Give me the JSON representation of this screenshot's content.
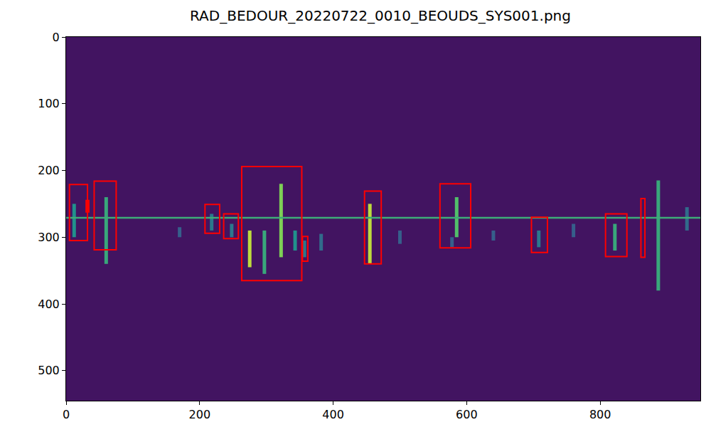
{
  "chart_data": {
    "type": "spectrogram",
    "title": "RAD_BEDOUR_20220722_0010_BEOUDS_SYS001.png",
    "xlim": [
      0,
      950
    ],
    "ylim": [
      545,
      0
    ],
    "xticks": [
      0,
      200,
      400,
      600,
      800
    ],
    "yticks": [
      0,
      100,
      200,
      300,
      400,
      500
    ],
    "zlim": [
      0,
      1
    ],
    "grid": false,
    "carrier": {
      "y": 271,
      "x": [
        0,
        950
      ],
      "value": 0.62
    },
    "signals": {
      "x": [
        12,
        60,
        170,
        218,
        248,
        275,
        297,
        322,
        343,
        357,
        382,
        455,
        500,
        578,
        585,
        640,
        708,
        760,
        822,
        887,
        930
      ],
      "y0": [
        250,
        240,
        285,
        265,
        280,
        290,
        290,
        220,
        290,
        305,
        295,
        250,
        290,
        300,
        240,
        290,
        290,
        280,
        280,
        215,
        255
      ],
      "y1": [
        300,
        340,
        300,
        290,
        300,
        345,
        355,
        330,
        320,
        330,
        320,
        340,
        310,
        315,
        300,
        305,
        315,
        300,
        320,
        380,
        290
      ],
      "value": [
        0.5,
        0.6,
        0.3,
        0.4,
        0.4,
        0.9,
        0.6,
        0.8,
        0.5,
        0.4,
        0.35,
        0.9,
        0.3,
        0.3,
        0.7,
        0.3,
        0.4,
        0.3,
        0.6,
        0.6,
        0.35
      ]
    },
    "boxes": {
      "color": "red",
      "x0": [
        5,
        30,
        42,
        208,
        236,
        263,
        354,
        447,
        560,
        697,
        808,
        861
      ],
      "y0": [
        221,
        245,
        216,
        251,
        265,
        194,
        299,
        231,
        220,
        270,
        265,
        242
      ],
      "x1": [
        32,
        34,
        75,
        230,
        258,
        353,
        362,
        472,
        606,
        721,
        840,
        867
      ],
      "y1": [
        305,
        262,
        319,
        294,
        302,
        365,
        336,
        340,
        316,
        323,
        329,
        330
      ]
    }
  }
}
